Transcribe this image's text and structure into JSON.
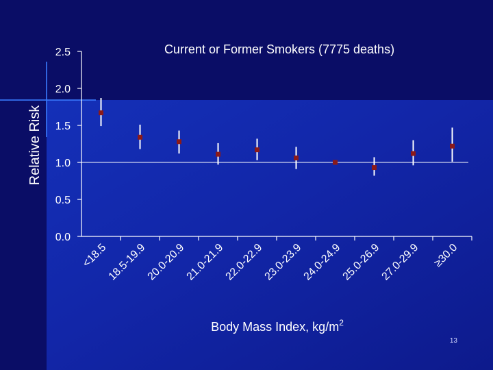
{
  "slide": {
    "number": "13",
    "colors": {
      "background_dark": "#0a0d66",
      "background_mid": "#1a2fb8",
      "marker": "#8b1a1a",
      "text": "#ffffff"
    }
  },
  "chart_data": {
    "type": "scatter",
    "title": "Current or Former Smokers (7775 deaths)",
    "ylabel": "Relative Risk",
    "xlabel": "Body Mass Index, kg/m",
    "xlabel_superscript": "2",
    "ylim": [
      0,
      2.5
    ],
    "yticks": [
      "0.0",
      "0.5",
      "1.0",
      "1.5",
      "2.0",
      "2.5"
    ],
    "reference_line": 1.0,
    "grid": false,
    "legend": "none",
    "categories": [
      "<18.5",
      "18.5-19.9",
      "20.0-20.9",
      "21.0-21.9",
      "22.0-22.9",
      "23.0-23.9",
      "24.0-24.9",
      "25.0-26.9",
      "27.0-29.9",
      "≥30.0"
    ],
    "values": [
      1.67,
      1.34,
      1.28,
      1.11,
      1.17,
      1.06,
      1.0,
      0.93,
      1.12,
      1.22
    ],
    "ci_low": [
      1.49,
      1.18,
      1.12,
      0.97,
      1.03,
      0.91,
      1.0,
      0.82,
      0.96,
      1.01
    ],
    "ci_high": [
      1.87,
      1.51,
      1.43,
      1.26,
      1.32,
      1.21,
      1.0,
      1.07,
      1.3,
      1.47
    ]
  }
}
